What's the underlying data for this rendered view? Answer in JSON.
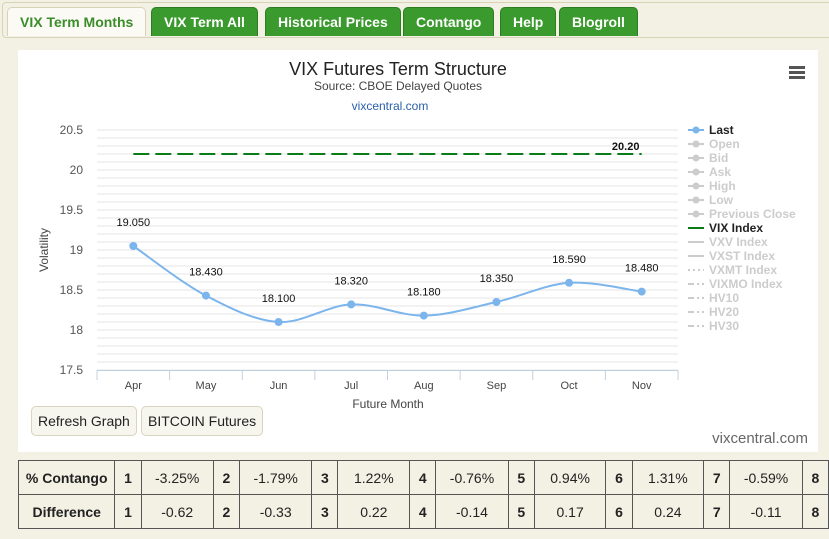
{
  "tabs": [
    "VIX Term Months",
    "VIX Term All",
    "Historical Prices",
    "Contango",
    "Help",
    "Blogroll"
  ],
  "chart_data": {
    "type": "line",
    "title": "VIX Futures Term Structure",
    "subtitle": "Source: CBOE Delayed Quotes",
    "credit_top": "vixcentral.com",
    "xlabel": "Future Month",
    "ylabel": "Volatility",
    "categories": [
      "Apr",
      "May",
      "Jun",
      "Jul",
      "Aug",
      "Sep",
      "Oct",
      "Nov"
    ],
    "ylim": [
      17.5,
      20.5
    ],
    "yticks": [
      "17.5",
      "18",
      "18.5",
      "19",
      "19.5",
      "20",
      "20.5"
    ],
    "series": [
      {
        "name": "Last",
        "color": "#7cb5ec",
        "values": [
          19.05,
          18.43,
          18.1,
          18.32,
          18.18,
          18.35,
          18.59,
          18.48
        ],
        "labels": [
          "19.050",
          "18.430",
          "18.100",
          "18.320",
          "18.180",
          "18.350",
          "18.590",
          "18.480"
        ]
      },
      {
        "name": "VIX Index",
        "color": "#0a7d1a",
        "value": 20.2,
        "label": "20.20"
      }
    ],
    "legend": [
      {
        "name": "Last",
        "active": true,
        "sym": "dot"
      },
      {
        "name": "Open",
        "active": false,
        "sym": "diamond"
      },
      {
        "name": "Bid",
        "active": false,
        "sym": "square"
      },
      {
        "name": "Ask",
        "active": false,
        "sym": "tri"
      },
      {
        "name": "High",
        "active": false,
        "sym": "tri"
      },
      {
        "name": "Low",
        "active": false,
        "sym": "dot"
      },
      {
        "name": "Previous Close",
        "active": false,
        "sym": "diamond"
      },
      {
        "name": "VIX Index",
        "active": true,
        "sym": "line"
      },
      {
        "name": "VXV Index",
        "active": false,
        "sym": "line"
      },
      {
        "name": "VXST Index",
        "active": false,
        "sym": "line"
      },
      {
        "name": "VXMT Index",
        "active": false,
        "sym": "dot-line"
      },
      {
        "name": "VIXMO Index",
        "active": false,
        "sym": "dashdot"
      },
      {
        "name": "HV10",
        "active": false,
        "sym": "dashdot"
      },
      {
        "name": "HV20",
        "active": false,
        "sym": "dashdot"
      },
      {
        "name": "HV30",
        "active": false,
        "sym": "dashdot"
      }
    ],
    "legend_position": "right",
    "grid": true
  },
  "buttons": {
    "refresh": "Refresh Graph",
    "bitcoin": "BITCOIN Futures"
  },
  "credit_bottom": "vixcentral.com",
  "table": {
    "rows": [
      {
        "label": "% Contango",
        "values": [
          "-3.25%",
          "-1.79%",
          "1.22%",
          "-0.76%",
          "0.94%",
          "1.31%",
          "-0.59%"
        ]
      },
      {
        "label": "Difference",
        "values": [
          "-0.62",
          "-0.33",
          "0.22",
          "-0.14",
          "0.17",
          "0.24",
          "-0.11"
        ]
      }
    ],
    "nums": [
      "1",
      "2",
      "3",
      "4",
      "5",
      "6",
      "7",
      "8"
    ]
  }
}
